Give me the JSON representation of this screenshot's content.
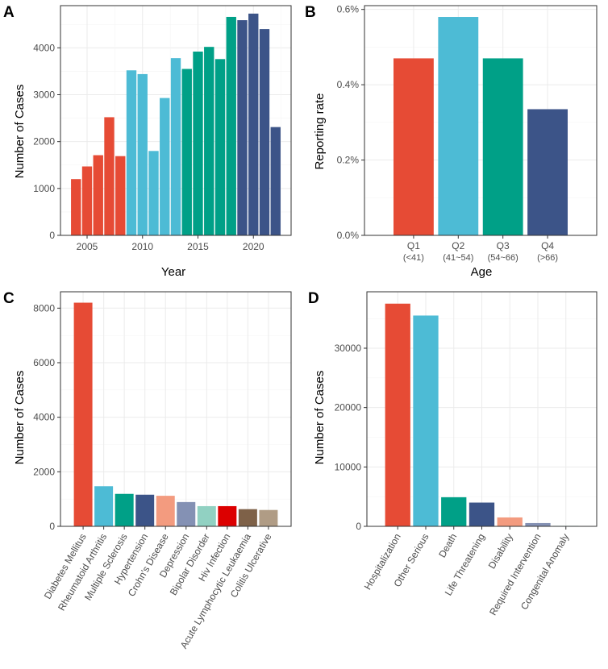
{
  "colors": {
    "red": "#E64B35",
    "cyan": "#4DBBD5",
    "teal": "#00A087",
    "navy": "#3C5488",
    "salmon": "#F39B7F",
    "lavender": "#8491B4",
    "mint": "#91D1C2",
    "crimson": "#DC0000",
    "brown": "#7E6148",
    "tan": "#B09C85"
  },
  "chart_data": [
    {
      "panel": "A",
      "type": "bar",
      "xlabel": "Year",
      "ylabel": "Number of Cases",
      "ylim": [
        0,
        4900
      ],
      "xlim": [
        2002.6,
        2023.4
      ],
      "yticks": [
        0,
        1000,
        2000,
        3000,
        4000
      ],
      "ytick_labels": [
        "0",
        "1000",
        "2000",
        "3000",
        "4000"
      ],
      "xticks": [
        2005,
        2010,
        2015,
        2020
      ],
      "xtick_labels": [
        "2005",
        "2010",
        "2015",
        "2020"
      ],
      "x": [
        2004,
        2005,
        2006,
        2007,
        2008,
        2009,
        2010,
        2011,
        2012,
        2013,
        2014,
        2015,
        2016,
        2017,
        2018,
        2019,
        2020,
        2021,
        2022
      ],
      "values": [
        1200,
        1470,
        1710,
        2520,
        1690,
        3520,
        3440,
        1800,
        2930,
        3780,
        3550,
        3920,
        4020,
        3760,
        4660,
        4590,
        4730,
        4400,
        2310
      ],
      "bar_colors": [
        "red",
        "red",
        "red",
        "red",
        "red",
        "cyan",
        "cyan",
        "cyan",
        "cyan",
        "cyan",
        "teal",
        "teal",
        "teal",
        "teal",
        "teal",
        "navy",
        "navy",
        "navy",
        "navy"
      ]
    },
    {
      "panel": "B",
      "type": "bar",
      "xlabel": "Age",
      "ylabel": "Reporting rate",
      "ylim": [
        0,
        0.0061
      ],
      "yticks": [
        0,
        0.002,
        0.004,
        0.006
      ],
      "ytick_labels": [
        "0.0%",
        "0.2%",
        "0.4%",
        "0.6%"
      ],
      "categories": [
        "Q1",
        "Q2",
        "Q3",
        "Q4"
      ],
      "category_sublabels": [
        "(<41)",
        "(41~54)",
        "(54~66)",
        "(>66)"
      ],
      "values": [
        0.0047,
        0.0058,
        0.0047,
        0.00335
      ],
      "bar_colors": [
        "red",
        "cyan",
        "teal",
        "navy"
      ]
    },
    {
      "panel": "C",
      "type": "bar",
      "xlabel": "",
      "ylabel": "Number of Cases",
      "ylim": [
        0,
        8600
      ],
      "yticks": [
        0,
        2000,
        4000,
        6000,
        8000
      ],
      "ytick_labels": [
        "0",
        "2000",
        "4000",
        "6000",
        "8000"
      ],
      "categories": [
        "Diabetes Mellitus",
        "Rheumatoid Arthritis",
        "Multiple Sclerosis",
        "Hypertension",
        "Crohn's Disease",
        "Depression",
        "Bipolar Disorder",
        "Hiv Infection",
        "Acute Lymphocytic Leukaemia",
        "Colitis Ulcerative"
      ],
      "values": [
        8200,
        1470,
        1190,
        1160,
        1120,
        890,
        740,
        740,
        630,
        600
      ],
      "bar_colors": [
        "red",
        "cyan",
        "teal",
        "navy",
        "salmon",
        "lavender",
        "mint",
        "crimson",
        "brown",
        "tan"
      ]
    },
    {
      "panel": "D",
      "type": "bar",
      "xlabel": "",
      "ylabel": "Number of Cases",
      "ylim": [
        0,
        39500
      ],
      "yticks": [
        0,
        10000,
        20000,
        30000
      ],
      "ytick_labels": [
        "0",
        "10000",
        "20000",
        "30000"
      ],
      "categories": [
        "Hospitalization",
        "Other Serious",
        "Death",
        "Life Threatening",
        "Disability",
        "Required Intervention",
        "Congenital Anomaly"
      ],
      "values": [
        37500,
        35500,
        4900,
        4000,
        1500,
        550,
        80
      ],
      "bar_colors": [
        "red",
        "cyan",
        "teal",
        "navy",
        "salmon",
        "lavender",
        "mint"
      ]
    }
  ]
}
